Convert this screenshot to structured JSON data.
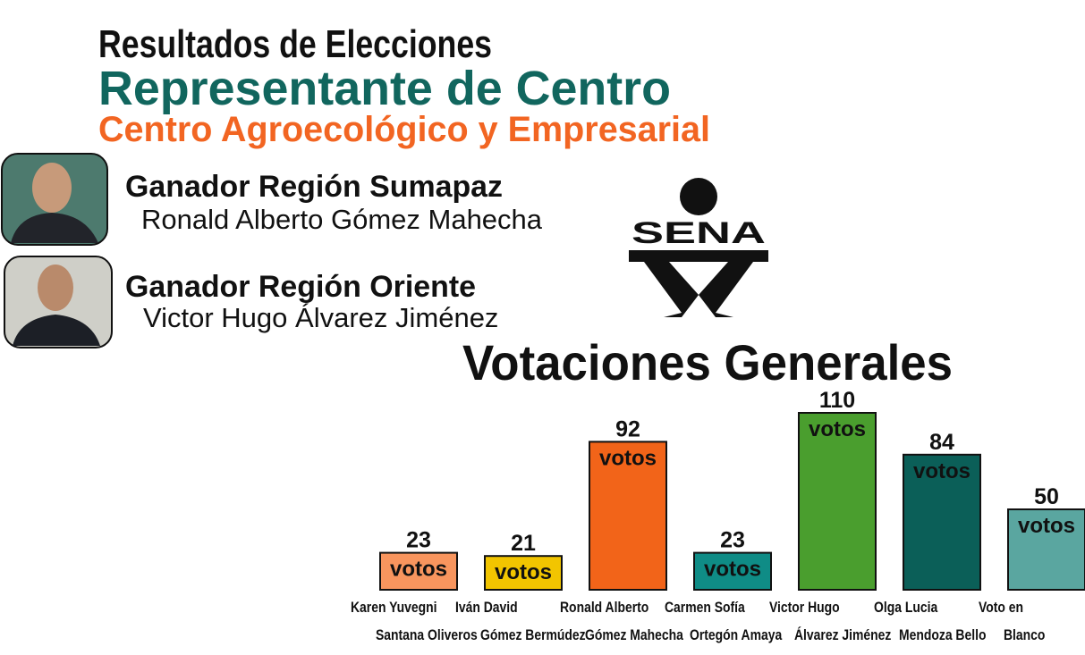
{
  "header": {
    "title": "Resultados de Elecciones",
    "subtitle": "Representante de Centro",
    "center": "Centro Agroecológico y Empresarial"
  },
  "winners": [
    {
      "region": "Ganador Región Sumapaz",
      "name": "Ronald Alberto Gómez Mahecha"
    },
    {
      "region": "Ganador Región Oriente",
      "name": "Victor Hugo Álvarez Jiménez"
    }
  ],
  "logo": "SENA",
  "chart_data": {
    "type": "bar",
    "title": "Votaciones Generales",
    "categories": [
      [
        "Karen Yuvegni",
        "Santana Oliveros"
      ],
      [
        "Iván David",
        "Gómez Bermúdez"
      ],
      [
        "Ronald Alberto",
        "Gómez Mahecha"
      ],
      [
        "Carmen Sofía",
        "Ortegón Amaya"
      ],
      [
        "Victor Hugo",
        "Álvarez Jiménez"
      ],
      [
        "Olga Lucia",
        "Mendoza Bello"
      ],
      [
        "Voto en",
        "Blanco"
      ]
    ],
    "values": [
      23,
      21,
      92,
      23,
      110,
      84,
      50
    ],
    "unit": "votos",
    "colors": [
      "#f8955e",
      "#f2c500",
      "#f26419",
      "#0f8c86",
      "#4a9e2e",
      "#0b5f58",
      "#5aa6a0"
    ]
  }
}
